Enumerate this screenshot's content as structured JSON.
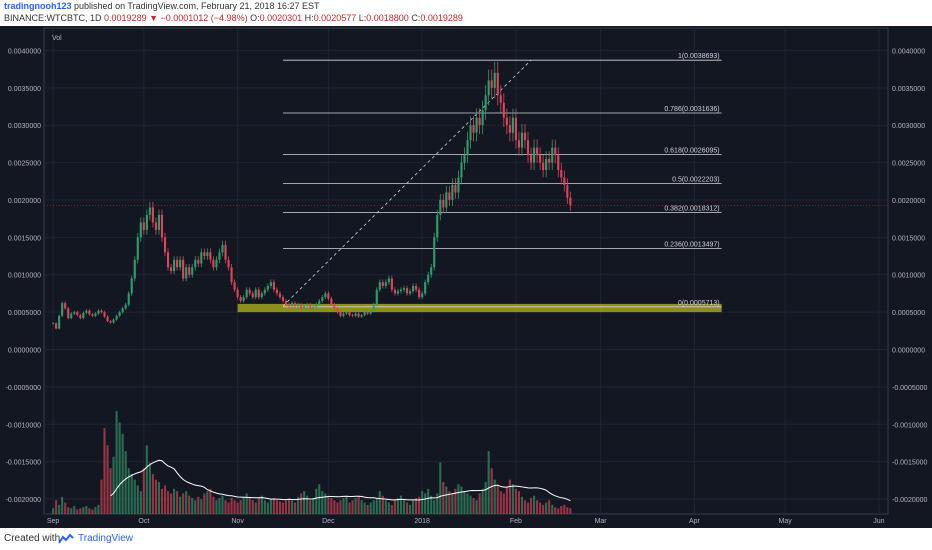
{
  "header": {
    "user": "tradingnooh123",
    "published": "published on TradingView.com, February 21, 2018 16:27 EST",
    "symbol": "BINANCE:WTCBTC, 1D",
    "last": "0.0019289",
    "change": "▼ −0.0001012 (−4.98%)",
    "o_label": "O:",
    "o": "0.0020301",
    "h_label": "H:",
    "h": "0.0020577",
    "l_label": "L:",
    "l": "0.0018800",
    "c_label": "C:",
    "c": "0.0019289"
  },
  "footer": {
    "created": "Created with",
    "brand": "TradingView"
  },
  "chart_data": {
    "type": "candlestick",
    "indicator_label": "Vol",
    "ylim": [
      -0.0022,
      0.0043
    ],
    "yticks": [
      "0.0040000",
      "0.0035000",
      "0.0030000",
      "0.0025000",
      "0.0020000",
      "0.0015000",
      "0.0010000",
      "0.0005000",
      "0.0000000",
      "-0.0005000",
      "-0.0010000",
      "-0.0015000",
      "-0.0020000"
    ],
    "ytick_values": [
      0.004,
      0.0035,
      0.003,
      0.0025,
      0.002,
      0.0015,
      0.001,
      0.0005,
      0,
      -0.0005,
      -0.001,
      -0.0015,
      -0.002
    ],
    "xticks": [
      "Sep",
      "Oct",
      "Nov",
      "Dec",
      "2018",
      "Feb",
      "Mar",
      "Apr",
      "May",
      "Jun"
    ],
    "xtick_days": [
      0,
      30,
      61,
      91,
      122,
      153,
      181,
      212,
      242,
      273
    ],
    "price_line": 0.0019289,
    "fib_levels": [
      {
        "label": "1(0.0038693)",
        "value": 0.0038693
      },
      {
        "label": "0.786(0.0031636)",
        "value": 0.0031636
      },
      {
        "label": "0.618(0.0026095)",
        "value": 0.0026095
      },
      {
        "label": "0.5(0.0022203)",
        "value": 0.0022203
      },
      {
        "label": "0.382(0.0018312)",
        "value": 0.0018312
      },
      {
        "label": "0.236(0.0013497)",
        "value": 0.0013497
      },
      {
        "label": "0(0.0005713)",
        "value": 0.0005713
      }
    ],
    "fib_start_day": 76,
    "trend_line": {
      "from": [
        76,
        0.00058
      ],
      "to": [
        158,
        0.00387
      ]
    },
    "support_zone": {
      "from_day": 61,
      "to_day": 221,
      "low": 0.0005,
      "high": 0.00061
    },
    "closes": [
      0.00035,
      0.00028,
      0.00045,
      0.00062,
      0.00055,
      0.00042,
      0.00048,
      0.0005,
      0.00046,
      0.00042,
      0.00049,
      0.00052,
      0.00047,
      0.00045,
      0.00048,
      0.00052,
      0.0005,
      0.00044,
      0.00038,
      0.00036,
      0.0004,
      0.00045,
      0.0005,
      0.00055,
      0.0006,
      0.00075,
      0.00095,
      0.0012,
      0.0015,
      0.0017,
      0.0016,
      0.0018,
      0.0019,
      0.0017,
      0.0016,
      0.0018,
      0.0015,
      0.0013,
      0.0011,
      0.00105,
      0.0012,
      0.0011,
      0.0012,
      0.00095,
      0.0011,
      0.001,
      0.0011,
      0.0012,
      0.00115,
      0.0013,
      0.00125,
      0.0013,
      0.0012,
      0.0011,
      0.0012,
      0.0013,
      0.0014,
      0.0012,
      0.0011,
      0.0009,
      0.0008,
      0.0007,
      0.00065,
      0.0007,
      0.0008,
      0.00075,
      0.0007,
      0.0008,
      0.0007,
      0.00075,
      0.0008,
      0.00085,
      0.0009,
      0.0008,
      0.00075,
      0.0007,
      0.00065,
      0.0006,
      0.00058,
      0.00062,
      0.00058,
      0.0006,
      0.00055,
      0.00058,
      0.0006,
      0.00055,
      0.00057,
      0.0006,
      0.00065,
      0.0007,
      0.00075,
      0.00068,
      0.0006,
      0.00055,
      0.0005,
      0.00045,
      0.00048,
      0.0005,
      0.00046,
      0.00045,
      0.00048,
      0.00044,
      0.00046,
      0.0005,
      0.00048,
      0.00052,
      0.0006,
      0.0008,
      0.0009,
      0.00085,
      0.0009,
      0.00095,
      0.0008,
      0.00075,
      0.00078,
      0.0008,
      0.00082,
      0.00075,
      0.00078,
      0.00085,
      0.0008,
      0.0007,
      0.00075,
      0.0009,
      0.001,
      0.0011,
      0.0015,
      0.0018,
      0.002,
      0.0019,
      0.0021,
      0.002,
      0.0022,
      0.0021,
      0.0023,
      0.0025,
      0.0026,
      0.0028,
      0.003,
      0.0029,
      0.0031,
      0.003,
      0.0032,
      0.0034,
      0.0036,
      0.0035,
      0.0037,
      0.0034,
      0.0033,
      0.0031,
      0.003,
      0.0029,
      0.0031,
      0.0028,
      0.0027,
      0.0029,
      0.0028,
      0.0026,
      0.0025,
      0.0027,
      0.0026,
      0.0025,
      0.0024,
      0.00255,
      0.0025,
      0.0027,
      0.0026,
      0.0024,
      0.0023,
      0.0022,
      0.00203,
      0.0019289
    ],
    "volumes": [
      5,
      12,
      8,
      15,
      10,
      6,
      5,
      7,
      4,
      5,
      6,
      7,
      5,
      4,
      6,
      8,
      30,
      75,
      60,
      40,
      50,
      90,
      80,
      70,
      55,
      40,
      35,
      30,
      25,
      20,
      40,
      60,
      45,
      35,
      30,
      28,
      22,
      25,
      20,
      18,
      22,
      20,
      15,
      18,
      20,
      16,
      14,
      12,
      15,
      13,
      18,
      20,
      22,
      15,
      12,
      14,
      16,
      12,
      10,
      14,
      12,
      10,
      12,
      15,
      18,
      14,
      12,
      10,
      14,
      16,
      12,
      10,
      13,
      14,
      12,
      11,
      10,
      12,
      14,
      12,
      10,
      15,
      18,
      20,
      16,
      12,
      14,
      22,
      26,
      20,
      18,
      16,
      14,
      12,
      10,
      12,
      14,
      15,
      10,
      12,
      14,
      16,
      12,
      10,
      8,
      10,
      12,
      14,
      20,
      16,
      12,
      10,
      8,
      12,
      14,
      16,
      12,
      10,
      8,
      12,
      14,
      15,
      20,
      18,
      22,
      16,
      12,
      18,
      45,
      28,
      24,
      20,
      18,
      22,
      26,
      24,
      20,
      18,
      16,
      14,
      12,
      18,
      22,
      28,
      55,
      40,
      30,
      25,
      20,
      18,
      24,
      30,
      26,
      22,
      20,
      15,
      12,
      10,
      14,
      16,
      12,
      10,
      8,
      10,
      12,
      8,
      6,
      5,
      7,
      8,
      6,
      5
    ],
    "volume_ma": [
      null,
      null,
      null,
      null,
      null,
      null,
      null,
      null,
      null,
      null,
      null,
      null,
      null,
      null,
      null,
      null,
      null,
      null,
      null,
      null,
      null,
      null,
      null,
      null,
      null,
      null,
      null,
      null,
      null,
      null,
      null,
      null,
      null,
      null,
      null,
      null,
      null,
      null,
      null,
      null,
      null,
      null,
      null,
      null,
      null,
      null,
      null,
      null,
      null,
      null,
      null,
      null,
      null,
      null,
      null,
      null,
      null,
      null,
      null,
      null,
      null,
      null,
      null,
      null,
      null,
      null,
      null,
      null,
      null,
      null,
      null,
      null,
      null,
      null,
      null,
      null,
      null,
      null,
      null,
      null,
      null,
      null,
      null,
      null,
      null,
      null,
      null,
      null,
      null,
      null,
      null,
      null,
      null,
      null,
      null,
      null,
      null,
      null,
      null,
      null,
      null,
      null,
      null,
      null,
      null,
      null,
      null,
      null,
      null,
      null,
      null,
      null,
      null,
      null,
      null,
      null,
      null,
      null,
      null,
      null,
      null,
      null,
      null,
      null,
      null,
      null,
      null,
      null,
      null,
      null,
      null,
      null,
      null,
      null,
      null,
      null,
      null,
      null,
      null,
      null,
      null,
      null,
      null,
      null,
      null,
      null,
      null,
      null,
      null,
      null,
      null,
      null,
      null,
      null,
      null,
      null,
      null,
      null,
      null,
      null,
      null,
      null,
      null,
      null,
      null,
      null,
      null,
      null,
      null,
      null,
      null,
      null,
      null
    ]
  }
}
